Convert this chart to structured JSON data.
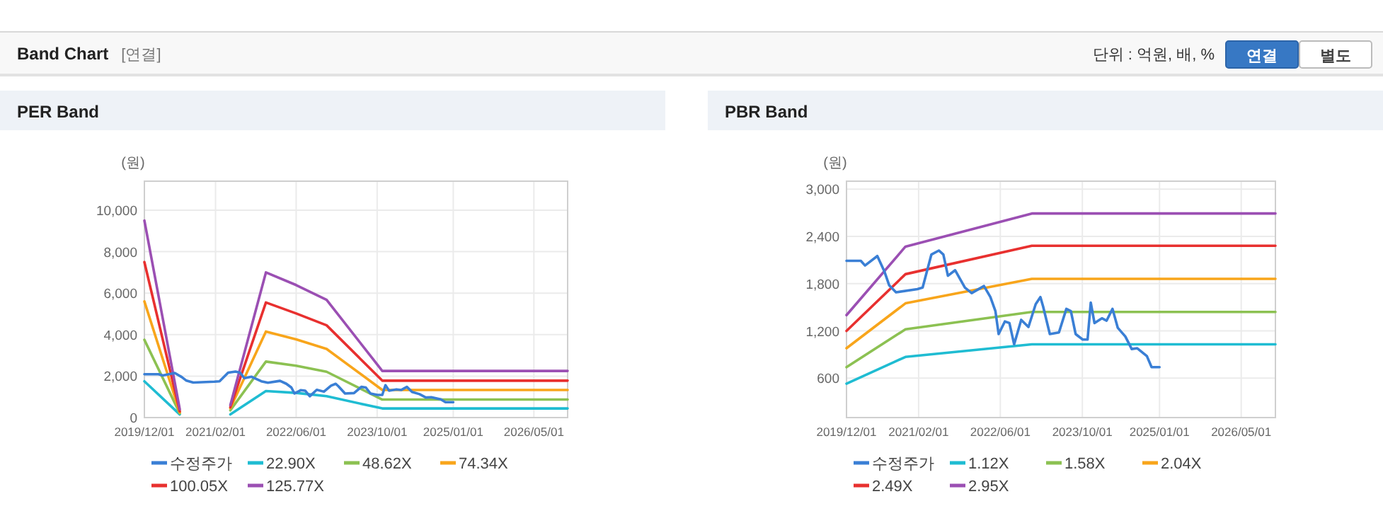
{
  "chart_data": [
    {
      "type": "other",
      "title": "Band Chart",
      "annotations": [
        "[연결]",
        "단위 : 억원, 배, %",
        "연결",
        "별도"
      ]
    },
    {
      "type": "line",
      "title": "PER Band",
      "ylabel": "(원)",
      "grid": true,
      "legend": "bottom",
      "xlim": [
        "2019-12-01",
        "2026-11-20"
      ],
      "ylim": [
        0,
        11400
      ],
      "yticks": [
        0,
        {
          "value": 2000,
          "label": "2,000"
        },
        {
          "value": 4000,
          "label": "4,000"
        },
        {
          "value": 6000,
          "label": "6,000"
        },
        {
          "value": 8000,
          "label": "8,000"
        },
        {
          "value": 10000,
          "label": "10,000"
        }
      ],
      "xticks": [
        {
          "value": "2019-12-01",
          "label": "2019/12/01"
        },
        {
          "value": "2021-02-01",
          "label": "2021/02/01"
        },
        {
          "value": "2022-06-01",
          "label": "2022/06/01"
        },
        {
          "value": "2023-10-01",
          "label": "2023/10/01"
        },
        {
          "value": "2025-01-01",
          "label": "2025/01/01"
        },
        {
          "value": "2026-05-01",
          "label": "2026/05/01"
        }
      ],
      "series": [
        {
          "name": "수정주가",
          "color": "#3a7fd5",
          "x": [
            "2019-12-01",
            "2020-02-24",
            "2020-03-20",
            "2020-06-01",
            "2020-07-12",
            "2020-08-10",
            "2020-09-20",
            "2021-01-25",
            "2021-02-25",
            "2021-04-18",
            "2021-06-01",
            "2021-06-28",
            "2021-07-25",
            "2021-09-06",
            "2021-11-03",
            "2021-12-13",
            "2022-02-24",
            "2022-04-03",
            "2022-05-03",
            "2022-05-22",
            "2022-06-28",
            "2022-07-25",
            "2022-08-22",
            "2022-10-03",
            "2022-11-15",
            "2022-12-28",
            "2023-01-25",
            "2023-02-10",
            "2023-03-22",
            "2023-05-15",
            "2023-06-28",
            "2023-07-25",
            "2023-08-22",
            "2023-10-03",
            "2023-11-01",
            "2023-11-20",
            "2023-12-12",
            "2024-01-25",
            "2024-02-22",
            "2024-03-28",
            "2024-04-28",
            "2024-06-12",
            "2024-07-20",
            "2024-08-22",
            "2024-10-18",
            "2024-11-15",
            "2025-01-01"
          ],
          "values": [
            2090,
            2090,
            2030,
            2150,
            1960,
            1780,
            1690,
            1730,
            1750,
            2170,
            2220,
            2170,
            1900,
            1970,
            1750,
            1680,
            1770,
            1630,
            1450,
            1160,
            1320,
            1300,
            1030,
            1340,
            1250,
            1540,
            1630,
            1510,
            1160,
            1180,
            1480,
            1450,
            1160,
            1090,
            1090,
            1560,
            1300,
            1360,
            1330,
            1480,
            1240,
            1130,
            970,
            980,
            880,
            740,
            740
          ]
        },
        {
          "name": "22.90X",
          "color": "#1fbcd2",
          "x": [
            "2019-12-01",
            "2020-07-01",
            "2020-10-01",
            "2021-05-01",
            "2021-12-01",
            "2022-06-01",
            "2022-12-01",
            "2023-11-01",
            "2026-11-20"
          ],
          "values": [
            1750,
            150,
            null,
            150,
            1280,
            1190,
            1030,
            440,
            440
          ]
        },
        {
          "name": "48.62X",
          "color": "#8cc152",
          "x": [
            "2019-12-01",
            "2020-07-01",
            "2020-10-01",
            "2021-05-01",
            "2021-12-01",
            "2022-06-01",
            "2022-12-01",
            "2023-11-01",
            "2026-11-20"
          ],
          "values": [
            3750,
            200,
            null,
            350,
            2700,
            2500,
            2210,
            870,
            870
          ]
        },
        {
          "name": "74.34X",
          "color": "#f8a51b",
          "x": [
            "2019-12-01",
            "2020-07-01",
            "2020-10-01",
            "2021-05-01",
            "2021-12-01",
            "2022-06-01",
            "2022-12-01",
            "2023-11-01",
            "2026-11-20"
          ],
          "values": [
            5600,
            250,
            null,
            450,
            4150,
            3770,
            3310,
            1330,
            1330
          ]
        },
        {
          "name": "100.05X",
          "color": "#e8302f",
          "x": [
            "2019-12-01",
            "2020-07-01",
            "2020-10-01",
            "2021-05-01",
            "2021-12-01",
            "2022-06-01",
            "2022-12-01",
            "2023-11-01",
            "2026-11-20"
          ],
          "values": [
            7500,
            300,
            null,
            500,
            5550,
            5020,
            4450,
            1780,
            1780
          ]
        },
        {
          "name": "125.77X",
          "color": "#9b4fb3",
          "x": [
            "2019-12-01",
            "2020-07-01",
            "2020-10-01",
            "2021-05-01",
            "2021-12-01",
            "2022-06-01",
            "2022-12-01",
            "2023-11-01",
            "2026-11-20"
          ],
          "values": [
            9500,
            400,
            null,
            600,
            7000,
            6390,
            5680,
            2250,
            2250
          ]
        }
      ]
    },
    {
      "type": "line",
      "title": "PBR Band",
      "ylabel": "(원)",
      "grid": true,
      "legend": "bottom",
      "xlim": [
        "2019-12-01",
        "2026-11-20"
      ],
      "ylim": [
        100,
        3100
      ],
      "yticks": [
        600,
        {
          "value": 1200,
          "label": "1,200"
        },
        {
          "value": 1800,
          "label": "1,800"
        },
        {
          "value": 2400,
          "label": "2,400"
        },
        {
          "value": 3000,
          "label": "3,000"
        }
      ],
      "xticks": [
        {
          "value": "2019-12-01",
          "label": "2019/12/01"
        },
        {
          "value": "2021-02-01",
          "label": "2021/02/01"
        },
        {
          "value": "2022-06-01",
          "label": "2022/06/01"
        },
        {
          "value": "2023-10-01",
          "label": "2023/10/01"
        },
        {
          "value": "2025-01-01",
          "label": "2025/01/01"
        },
        {
          "value": "2026-05-01",
          "label": "2026/05/01"
        }
      ],
      "series": [
        {
          "name": "수정주가",
          "color": "#3a7fd5",
          "x": [
            "2019-12-01",
            "2020-02-24",
            "2020-03-20",
            "2020-06-01",
            "2020-07-12",
            "2020-08-10",
            "2020-09-20",
            "2021-01-25",
            "2021-02-25",
            "2021-04-18",
            "2021-06-01",
            "2021-06-28",
            "2021-07-25",
            "2021-09-06",
            "2021-11-03",
            "2021-12-13",
            "2022-02-24",
            "2022-04-03",
            "2022-05-03",
            "2022-05-22",
            "2022-06-28",
            "2022-07-25",
            "2022-08-22",
            "2022-10-03",
            "2022-11-15",
            "2022-12-28",
            "2023-01-25",
            "2023-02-10",
            "2023-03-22",
            "2023-05-15",
            "2023-06-28",
            "2023-07-25",
            "2023-08-22",
            "2023-10-03",
            "2023-11-01",
            "2023-11-20",
            "2023-12-12",
            "2024-01-25",
            "2024-02-22",
            "2024-03-28",
            "2024-04-28",
            "2024-06-12",
            "2024-07-20",
            "2024-08-22",
            "2024-10-18",
            "2024-11-15",
            "2025-01-01"
          ],
          "values": [
            2090,
            2090,
            2030,
            2150,
            1960,
            1780,
            1690,
            1730,
            1750,
            2170,
            2220,
            2170,
            1900,
            1970,
            1750,
            1680,
            1770,
            1630,
            1450,
            1160,
            1320,
            1300,
            1030,
            1340,
            1250,
            1540,
            1630,
            1510,
            1160,
            1180,
            1480,
            1450,
            1160,
            1090,
            1090,
            1560,
            1300,
            1360,
            1330,
            1480,
            1240,
            1130,
            970,
            980,
            880,
            740,
            740
          ]
        },
        {
          "name": "1.12X",
          "color": "#1fbcd2",
          "x": [
            "2019-12-01",
            "2020-11-15",
            "2022-12-05",
            "2026-11-20"
          ],
          "values": [
            530,
            870,
            1030,
            1030
          ]
        },
        {
          "name": "1.58X",
          "color": "#8cc152",
          "x": [
            "2019-12-01",
            "2020-11-15",
            "2022-12-05",
            "2026-11-20"
          ],
          "values": [
            740,
            1220,
            1440,
            1440
          ]
        },
        {
          "name": "2.04X",
          "color": "#f8a51b",
          "x": [
            "2019-12-01",
            "2020-11-15",
            "2022-12-05",
            "2026-11-20"
          ],
          "values": [
            980,
            1550,
            1860,
            1860
          ]
        },
        {
          "name": "2.49X",
          "color": "#e8302f",
          "x": [
            "2019-12-01",
            "2020-11-15",
            "2022-12-05",
            "2026-11-20"
          ],
          "values": [
            1200,
            1920,
            2280,
            2280
          ]
        },
        {
          "name": "2.95X",
          "color": "#9b4fb3",
          "x": [
            "2019-12-01",
            "2020-11-15",
            "2022-12-05",
            "2026-11-20"
          ],
          "values": [
            1400,
            2270,
            2690,
            2690
          ]
        }
      ]
    }
  ]
}
